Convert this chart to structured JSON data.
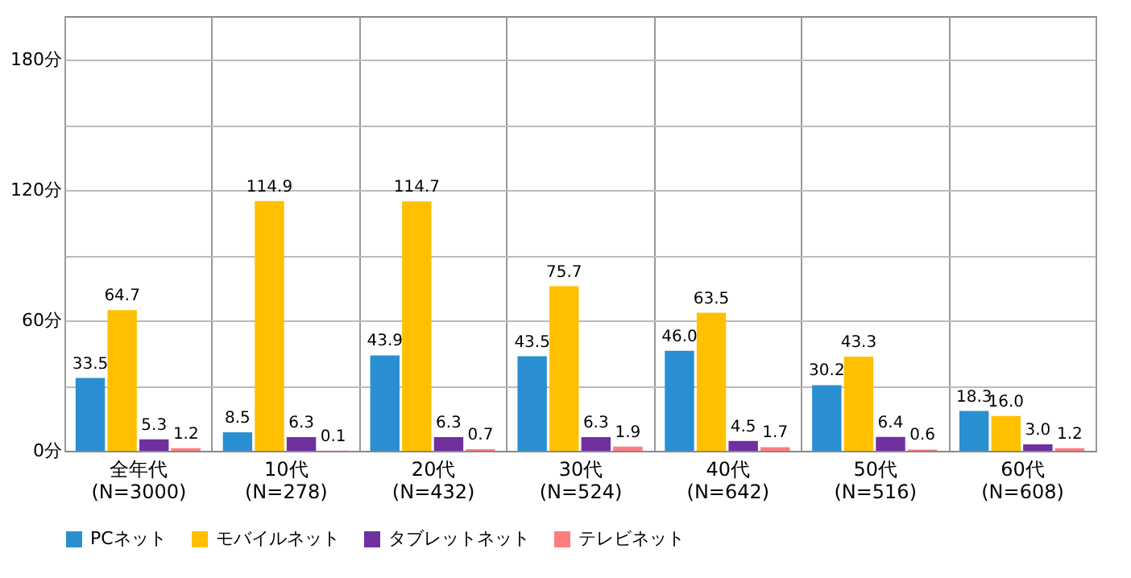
{
  "chart_data": {
    "type": "bar",
    "categories": [
      "全年代\n(N=3000)",
      "10代\n(N=278)",
      "20代\n(N=432)",
      "30代\n(N=524)",
      "40代\n(N=642)",
      "50代\n(N=516)",
      "60代\n(N=608)"
    ],
    "series": [
      {
        "name": "PCネット",
        "color": "#2a8fd0",
        "values": [
          33.5,
          8.5,
          43.9,
          43.5,
          46.0,
          30.2,
          18.3
        ],
        "value_labels": [
          "33.5",
          "8.5",
          "43.9",
          "43.5",
          "46.0",
          "30.2",
          "18.3"
        ]
      },
      {
        "name": "モバイルネット",
        "color": "#ffc000",
        "values": [
          64.7,
          114.9,
          114.7,
          75.7,
          63.5,
          43.3,
          16.0
        ],
        "value_labels": [
          "64.7",
          "114.9",
          "114.7",
          "75.7",
          "63.5",
          "43.3",
          "16.0"
        ]
      },
      {
        "name": "タブレットネット",
        "color": "#7030a0",
        "values": [
          5.3,
          6.3,
          6.3,
          6.3,
          4.5,
          6.4,
          3.0
        ],
        "value_labels": [
          "5.3",
          "6.3",
          "6.3",
          "6.3",
          "4.5",
          "6.4",
          "3.0"
        ]
      },
      {
        "name": "テレビネット",
        "color": "#ff7c80",
        "values": [
          1.2,
          0.1,
          0.7,
          1.9,
          1.7,
          0.6,
          1.2
        ],
        "value_labels": [
          "1.2",
          "0.1",
          "0.7",
          "1.9",
          "1.7",
          "0.6",
          "1.2"
        ]
      }
    ],
    "ylim": [
      0,
      200
    ],
    "yticks": [
      {
        "value": 0,
        "label": "0分"
      },
      {
        "value": 30,
        "label": null
      },
      {
        "value": 60,
        "label": "60分"
      },
      {
        "value": 90,
        "label": null
      },
      {
        "value": 120,
        "label": "120分"
      },
      {
        "value": 150,
        "label": null
      },
      {
        "value": 180,
        "label": "180分"
      }
    ],
    "grid": true,
    "legend": "bottom"
  }
}
